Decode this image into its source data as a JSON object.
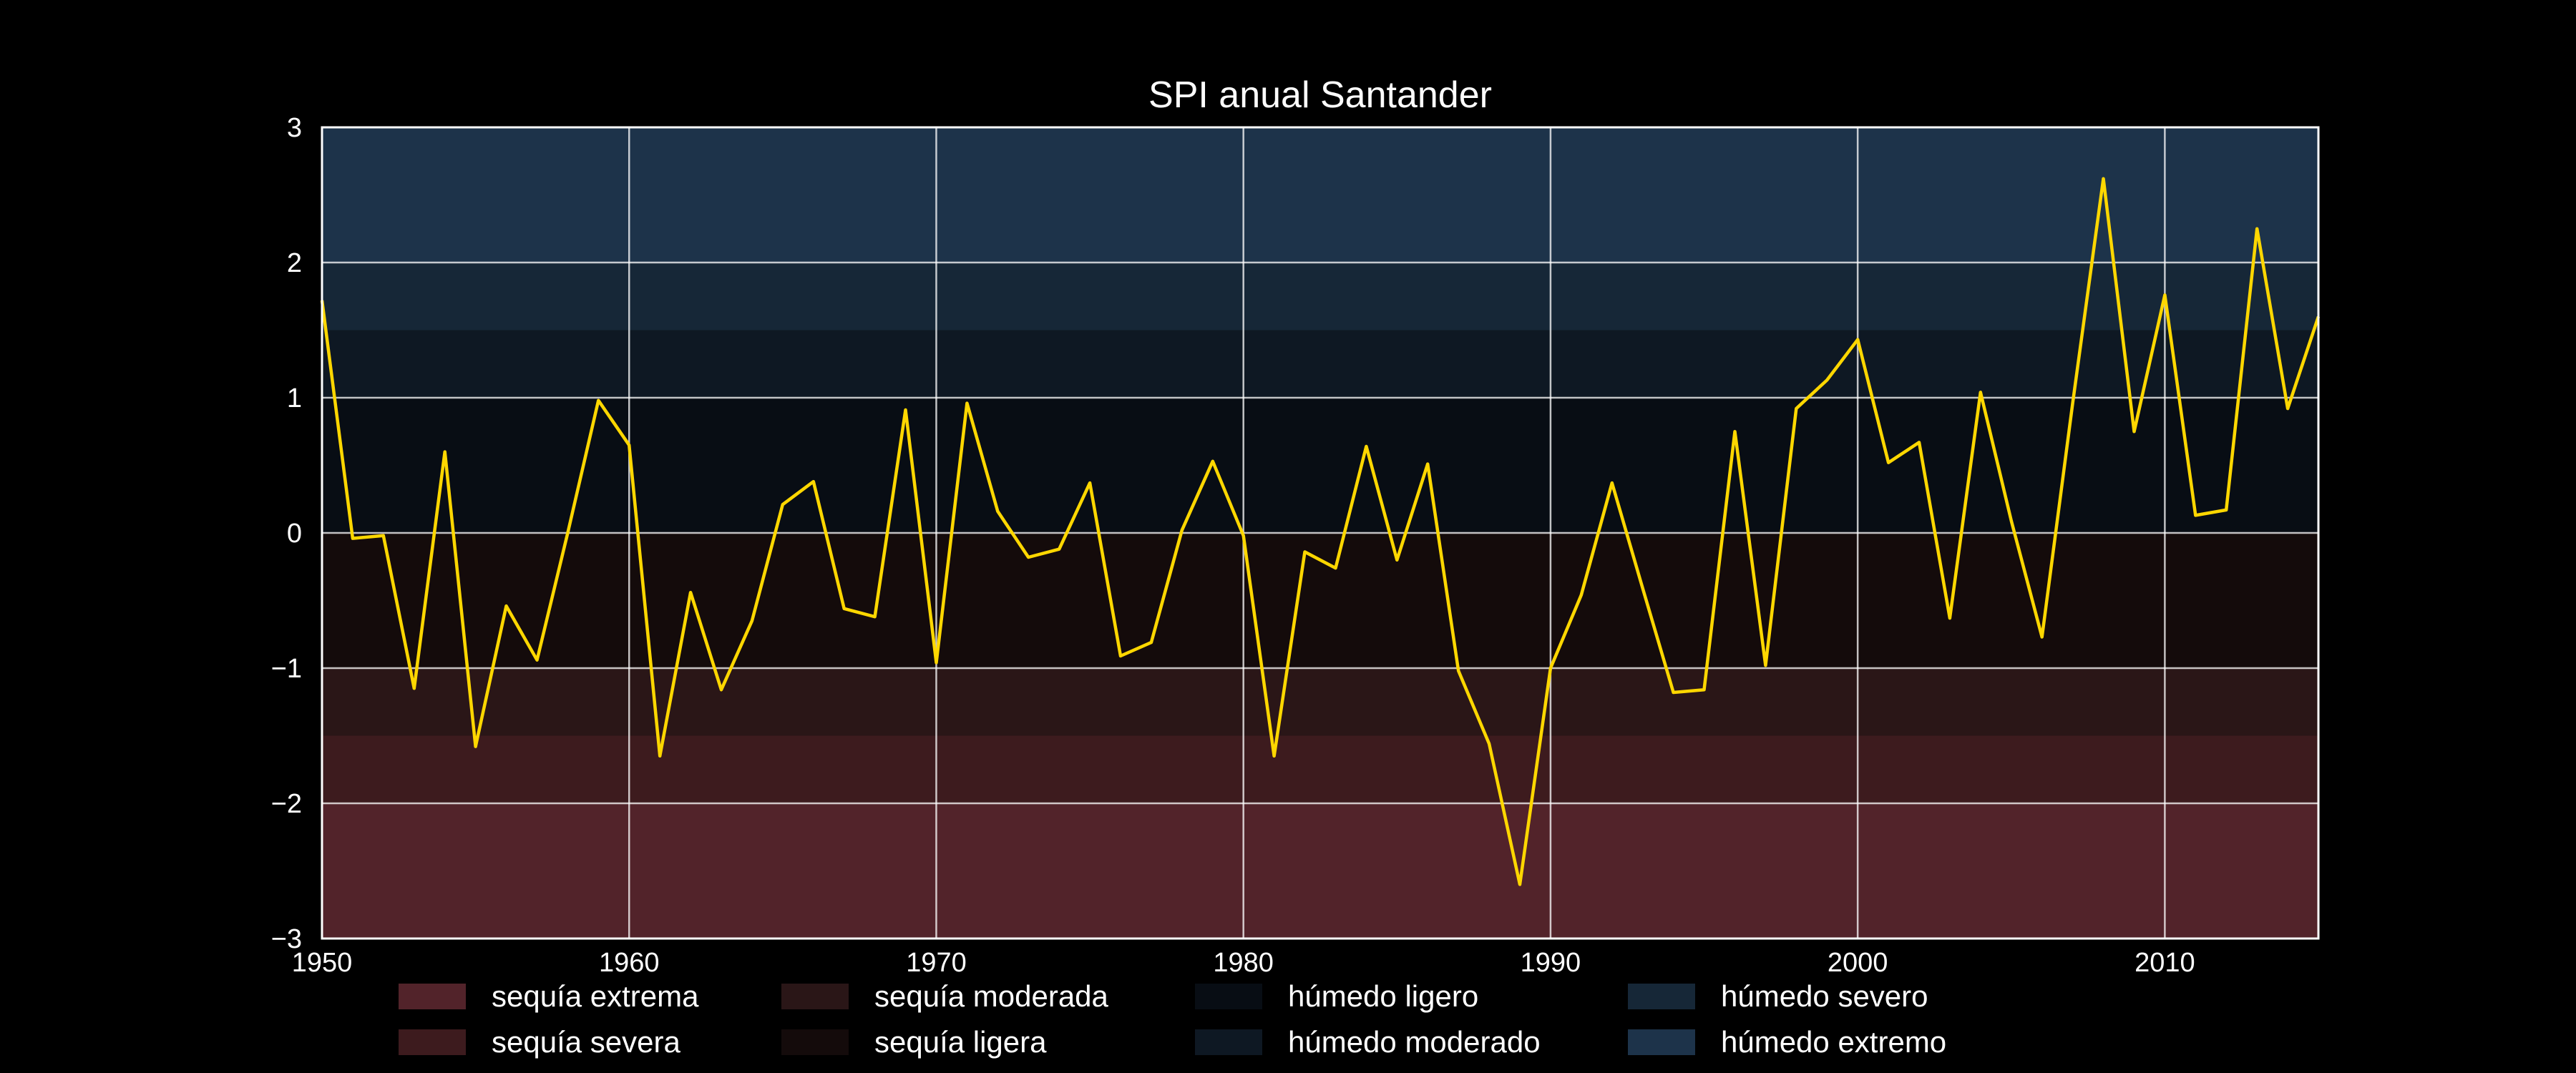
{
  "chart_data": {
    "type": "line",
    "title": "SPI anual Santander",
    "xlabel": "",
    "ylabel": "",
    "xlim": [
      1950,
      2015
    ],
    "ylim": [
      -3,
      3
    ],
    "x_ticks": [
      "1950",
      "1960",
      "1970",
      "1980",
      "1990",
      "2000",
      "2010"
    ],
    "y_ticks": [
      "−3",
      "−2",
      "−1",
      "0",
      "1",
      "2",
      "3"
    ],
    "grid": true,
    "line_color": "#ffd700",
    "x": [
      1950,
      1951,
      1952,
      1953,
      1954,
      1955,
      1956,
      1957,
      1958,
      1959,
      1960,
      1961,
      1962,
      1963,
      1964,
      1965,
      1966,
      1967,
      1968,
      1969,
      1970,
      1971,
      1972,
      1973,
      1974,
      1975,
      1976,
      1977,
      1978,
      1979,
      1980,
      1981,
      1982,
      1983,
      1984,
      1985,
      1986,
      1987,
      1988,
      1989,
      1990,
      1991,
      1992,
      1993,
      1994,
      1995,
      1996,
      1997,
      1998,
      1999,
      2000,
      2001,
      2002,
      2003,
      2004,
      2005,
      2006,
      2007,
      2008,
      2009,
      2010,
      2011,
      2012,
      2013,
      2014,
      2015
    ],
    "series": [
      {
        "values": [
          1.72,
          -0.04,
          -0.02,
          -1.15,
          0.6,
          -1.58,
          -0.54,
          -0.94,
          0.0,
          0.98,
          0.65,
          -1.65,
          -0.44,
          -1.16,
          -0.65,
          0.21,
          0.38,
          -0.56,
          -0.62,
          0.91,
          -0.96,
          0.96,
          0.16,
          -0.18,
          -0.12,
          0.37,
          -0.91,
          -0.81,
          0.02,
          0.53,
          -0.02,
          -1.65,
          -0.14,
          -0.26,
          0.64,
          -0.2,
          0.51,
          -1.02,
          -1.56,
          -2.6,
          -1.0,
          -0.46,
          0.37,
          -0.41,
          -1.18,
          -1.16,
          0.75,
          -0.98,
          0.92,
          1.13,
          1.43,
          0.52,
          0.67,
          -0.63,
          1.04,
          0.09,
          -0.77,
          0.96,
          2.62,
          0.75,
          1.76,
          0.13,
          0.17,
          2.25,
          0.92,
          1.6
        ]
      }
    ],
    "bands": [
      {
        "label": "sequía extrema",
        "from": -3,
        "to": -2,
        "color": "#52232a"
      },
      {
        "label": "sequía severa",
        "from": -2,
        "to": -1.5,
        "color": "#3d1b1e"
      },
      {
        "label": "sequía moderada",
        "from": -1.5,
        "to": -1,
        "color": "#2a1617"
      },
      {
        "label": "sequía ligera",
        "from": -1,
        "to": 0,
        "color": "#140b0b"
      },
      {
        "label": "húmedo ligero",
        "from": 0,
        "to": 1,
        "color": "#080d14"
      },
      {
        "label": "húmedo moderado",
        "from": 1,
        "to": 1.5,
        "color": "#0e1823"
      },
      {
        "label": "húmedo severo",
        "from": 1.5,
        "to": 2,
        "color": "#162737"
      },
      {
        "label": "húmedo extremo",
        "from": 2,
        "to": 3,
        "color": "#1d334a"
      }
    ],
    "legend_position": "bottom",
    "legend": [
      {
        "label": "sequía extrema",
        "color": "#52232a"
      },
      {
        "label": "sequía severa",
        "color": "#3d1b1e"
      },
      {
        "label": "sequía moderada",
        "color": "#2a1617"
      },
      {
        "label": "sequía ligera",
        "color": "#140b0b"
      },
      {
        "label": "húmedo ligero",
        "color": "#080d14"
      },
      {
        "label": "húmedo moderado",
        "color": "#0e1823"
      },
      {
        "label": "húmedo severo",
        "color": "#162737"
      },
      {
        "label": "húmedo extremo",
        "color": "#1d334a"
      }
    ]
  }
}
